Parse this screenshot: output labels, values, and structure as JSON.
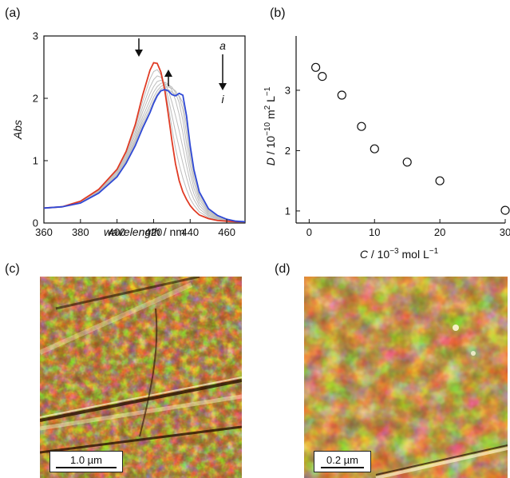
{
  "panel_labels": {
    "a": "(a)",
    "b": "(b)",
    "c": "(c)",
    "d": "(d)"
  },
  "chart_data": [
    {
      "panel": "(a)",
      "type": "line",
      "xlabel_italic": "wavelength",
      "xlabel_unit": " / nm",
      "ylabel": "Abs",
      "xlim": [
        360,
        470
      ],
      "ylim": [
        0,
        3
      ],
      "xticks": [
        360,
        380,
        400,
        420,
        440,
        460
      ],
      "yticks": [
        0,
        1,
        2,
        3
      ],
      "annotations": {
        "start_label": "a",
        "end_label": "i"
      },
      "colors": {
        "first": "#e03b24",
        "last": "#2f49d6",
        "intermediate": "#bdbdbd"
      },
      "series": [
        {
          "name": "a",
          "x": [
            360,
            370,
            380,
            390,
            400,
            405,
            410,
            414,
            418,
            420,
            422,
            424,
            426,
            428,
            430,
            432,
            434,
            436,
            438,
            440,
            442,
            445,
            450,
            455,
            460,
            465,
            470
          ],
          "values": [
            0.24,
            0.26,
            0.35,
            0.54,
            0.86,
            1.15,
            1.58,
            2.05,
            2.45,
            2.57,
            2.56,
            2.42,
            2.15,
            1.75,
            1.32,
            0.95,
            0.68,
            0.5,
            0.38,
            0.28,
            0.21,
            0.13,
            0.07,
            0.04,
            0.03,
            0.02,
            0.02
          ]
        },
        {
          "name": "b",
          "x": [
            360,
            370,
            380,
            390,
            400,
            405,
            410,
            414,
            418,
            420,
            422,
            424,
            426,
            428,
            430,
            432,
            434,
            436,
            438,
            440,
            442,
            445,
            450,
            455,
            460,
            465,
            470
          ],
          "values": [
            0.24,
            0.26,
            0.34,
            0.53,
            0.84,
            1.12,
            1.52,
            1.95,
            2.31,
            2.43,
            2.46,
            2.38,
            2.18,
            1.88,
            1.52,
            1.2,
            0.94,
            0.72,
            0.54,
            0.39,
            0.29,
            0.18,
            0.09,
            0.05,
            0.03,
            0.02,
            0.02
          ]
        },
        {
          "name": "c",
          "x": [
            360,
            370,
            380,
            390,
            400,
            405,
            410,
            414,
            418,
            420,
            422,
            424,
            426,
            428,
            430,
            432,
            434,
            436,
            438,
            440,
            442,
            445,
            450,
            455,
            460,
            465,
            470
          ],
          "values": [
            0.24,
            0.26,
            0.34,
            0.52,
            0.82,
            1.09,
            1.46,
            1.86,
            2.18,
            2.3,
            2.36,
            2.34,
            2.22,
            2.01,
            1.73,
            1.46,
            1.21,
            0.96,
            0.73,
            0.52,
            0.38,
            0.23,
            0.11,
            0.06,
            0.03,
            0.02,
            0.02
          ]
        },
        {
          "name": "d",
          "x": [
            360,
            370,
            380,
            390,
            400,
            405,
            410,
            414,
            418,
            420,
            422,
            424,
            426,
            428,
            430,
            432,
            434,
            436,
            438,
            440,
            442,
            445,
            450,
            455,
            460,
            465,
            470
          ],
          "values": [
            0.24,
            0.26,
            0.33,
            0.51,
            0.8,
            1.06,
            1.41,
            1.78,
            2.07,
            2.19,
            2.27,
            2.29,
            2.25,
            2.13,
            1.94,
            1.72,
            1.48,
            1.21,
            0.92,
            0.66,
            0.47,
            0.28,
            0.13,
            0.07,
            0.04,
            0.02,
            0.02
          ]
        },
        {
          "name": "e",
          "x": [
            360,
            370,
            380,
            390,
            400,
            405,
            410,
            414,
            418,
            420,
            422,
            424,
            426,
            428,
            430,
            432,
            434,
            436,
            438,
            440,
            442,
            445,
            450,
            455,
            460,
            465,
            470
          ],
          "values": [
            0.24,
            0.26,
            0.33,
            0.5,
            0.78,
            1.03,
            1.36,
            1.7,
            1.97,
            2.1,
            2.19,
            2.24,
            2.26,
            2.23,
            2.13,
            1.97,
            1.74,
            1.45,
            1.11,
            0.8,
            0.56,
            0.33,
            0.15,
            0.08,
            0.04,
            0.02,
            0.02
          ]
        },
        {
          "name": "f",
          "x": [
            360,
            370,
            380,
            390,
            400,
            405,
            410,
            414,
            418,
            420,
            422,
            424,
            426,
            428,
            430,
            432,
            434,
            436,
            438,
            440,
            442,
            445,
            450,
            455,
            460,
            465,
            470
          ],
          "values": [
            0.24,
            0.26,
            0.33,
            0.5,
            0.77,
            1.01,
            1.32,
            1.64,
            1.89,
            2.02,
            2.12,
            2.19,
            2.22,
            2.22,
            2.18,
            2.09,
            1.93,
            1.65,
            1.28,
            0.92,
            0.65,
            0.38,
            0.17,
            0.09,
            0.05,
            0.03,
            0.02
          ]
        },
        {
          "name": "g",
          "x": [
            360,
            370,
            380,
            390,
            400,
            405,
            410,
            414,
            418,
            420,
            422,
            424,
            426,
            428,
            430,
            432,
            434,
            436,
            438,
            440,
            442,
            445,
            450,
            455,
            460,
            465,
            470
          ],
          "values": [
            0.24,
            0.26,
            0.32,
            0.49,
            0.76,
            0.99,
            1.29,
            1.59,
            1.83,
            1.96,
            2.07,
            2.15,
            2.18,
            2.18,
            2.16,
            2.12,
            2.03,
            1.82,
            1.44,
            1.04,
            0.73,
            0.42,
            0.19,
            0.1,
            0.05,
            0.03,
            0.02
          ]
        },
        {
          "name": "h",
          "x": [
            360,
            370,
            380,
            390,
            400,
            405,
            410,
            414,
            418,
            420,
            422,
            424,
            426,
            428,
            430,
            432,
            434,
            436,
            438,
            440,
            442,
            445,
            450,
            455,
            460,
            465,
            470
          ],
          "values": [
            0.24,
            0.26,
            0.32,
            0.48,
            0.75,
            0.97,
            1.26,
            1.55,
            1.79,
            1.93,
            2.04,
            2.12,
            2.15,
            2.14,
            2.1,
            2.06,
            2.04,
            1.93,
            1.58,
            1.14,
            0.8,
            0.46,
            0.21,
            0.11,
            0.06,
            0.03,
            0.02
          ]
        },
        {
          "name": "i",
          "x": [
            360,
            370,
            380,
            390,
            400,
            405,
            410,
            414,
            418,
            420,
            422,
            424,
            426,
            428,
            430,
            432,
            434,
            436,
            438,
            440,
            442,
            445,
            450,
            455,
            460,
            465,
            470
          ],
          "values": [
            0.24,
            0.26,
            0.32,
            0.48,
            0.74,
            0.96,
            1.24,
            1.52,
            1.77,
            1.92,
            2.04,
            2.12,
            2.14,
            2.12,
            2.06,
            2.04,
            2.08,
            2.05,
            1.72,
            1.24,
            0.86,
            0.5,
            0.23,
            0.12,
            0.06,
            0.03,
            0.02
          ]
        }
      ]
    },
    {
      "panel": "(b)",
      "type": "scatter",
      "xlabel_var": "C",
      "xlabel_rest": " / 10",
      "xlabel_sup": "−3",
      "xlabel_unit": " mol L",
      "xlabel_unit_sup": "−1",
      "ylabel_var": "D",
      "ylabel_rest": " / 10",
      "ylabel_sup": "−10",
      "ylabel_unit": " m",
      "ylabel_unit_sup1": "2",
      "ylabel_unit2": " L",
      "ylabel_unit_sup2": "−1",
      "xlim": [
        -2,
        30
      ],
      "ylim": [
        0.8,
        3.9
      ],
      "xticks": [
        0,
        10,
        20,
        30
      ],
      "yticks": [
        1,
        2,
        3
      ],
      "series": [
        {
          "x": [
            1,
            2,
            5,
            8,
            10,
            15,
            20,
            30
          ],
          "values": [
            3.38,
            3.23,
            2.92,
            2.4,
            2.03,
            1.81,
            1.5,
            1.01
          ]
        }
      ]
    }
  ],
  "images": {
    "c": {
      "scale_label": "1.0 µm",
      "palette": [
        "#3a1b04",
        "#6b3a0a",
        "#a5661a",
        "#d9a24a",
        "#f7e7b6"
      ]
    },
    "d": {
      "scale_label": "0.2 µm",
      "palette": [
        "#3a1b04",
        "#6b3a0a",
        "#a5661a",
        "#d9a24a",
        "#f7e7b6"
      ]
    }
  }
}
